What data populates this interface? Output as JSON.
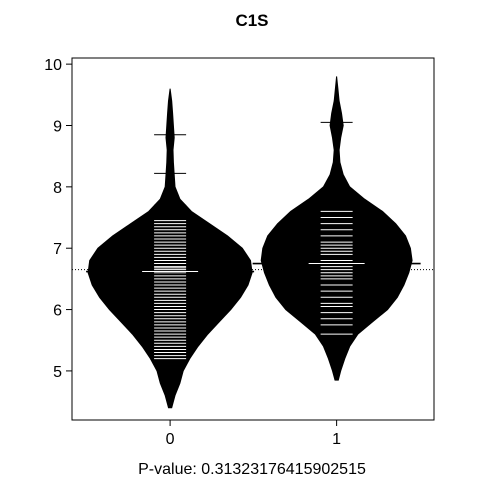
{
  "chart_data": {
    "type": "beanplot",
    "title": "C1S",
    "xlabel": "P-value: 0.31323176415902515",
    "ylabel": "",
    "ylim": [
      4.2,
      10.1
    ],
    "y_ticks": [
      5,
      6,
      7,
      8,
      9,
      10
    ],
    "categories": [
      "0",
      "1"
    ],
    "overall_mean": 6.65,
    "series": [
      {
        "category": "0",
        "mean": 6.62,
        "range": [
          4.4,
          9.6
        ],
        "density": [
          [
            4.4,
            0.02
          ],
          [
            4.6,
            0.06
          ],
          [
            4.8,
            0.12
          ],
          [
            5.0,
            0.16
          ],
          [
            5.2,
            0.24
          ],
          [
            5.4,
            0.34
          ],
          [
            5.6,
            0.46
          ],
          [
            5.8,
            0.6
          ],
          [
            6.0,
            0.74
          ],
          [
            6.2,
            0.86
          ],
          [
            6.4,
            0.95
          ],
          [
            6.6,
            1.0
          ],
          [
            6.8,
            0.98
          ],
          [
            7.0,
            0.88
          ],
          [
            7.2,
            0.7
          ],
          [
            7.4,
            0.48
          ],
          [
            7.6,
            0.26
          ],
          [
            7.8,
            0.12
          ],
          [
            8.0,
            0.06
          ],
          [
            8.2,
            0.05
          ],
          [
            8.4,
            0.04
          ],
          [
            8.6,
            0.035
          ],
          [
            8.8,
            0.05
          ],
          [
            9.0,
            0.04
          ],
          [
            9.2,
            0.03
          ],
          [
            9.4,
            0.02
          ],
          [
            9.6,
            0.0
          ]
        ],
        "observations": [
          5.2,
          5.25,
          5.3,
          5.35,
          5.4,
          5.45,
          5.5,
          5.55,
          5.6,
          5.65,
          5.7,
          5.75,
          5.8,
          5.85,
          5.9,
          5.95,
          6.0,
          6.05,
          6.1,
          6.15,
          6.2,
          6.25,
          6.3,
          6.35,
          6.4,
          6.45,
          6.5,
          6.55,
          6.6,
          6.65,
          6.68,
          6.7,
          6.75,
          6.8,
          6.85,
          6.9,
          6.95,
          7.0,
          7.05,
          7.1,
          7.15,
          7.2,
          7.25,
          7.3,
          7.35,
          7.4,
          7.45,
          7.7,
          8.22,
          8.85
        ]
      },
      {
        "category": "1",
        "mean": 6.75,
        "range": [
          4.85,
          9.8
        ],
        "density": [
          [
            4.85,
            0.02
          ],
          [
            5.0,
            0.05
          ],
          [
            5.2,
            0.1
          ],
          [
            5.4,
            0.16
          ],
          [
            5.6,
            0.26
          ],
          [
            5.8,
            0.44
          ],
          [
            6.0,
            0.62
          ],
          [
            6.2,
            0.74
          ],
          [
            6.4,
            0.82
          ],
          [
            6.6,
            0.88
          ],
          [
            6.8,
            0.92
          ],
          [
            7.0,
            0.9
          ],
          [
            7.2,
            0.84
          ],
          [
            7.4,
            0.72
          ],
          [
            7.6,
            0.56
          ],
          [
            7.8,
            0.34
          ],
          [
            8.0,
            0.16
          ],
          [
            8.2,
            0.08
          ],
          [
            8.4,
            0.04
          ],
          [
            8.6,
            0.03
          ],
          [
            8.8,
            0.05
          ],
          [
            9.0,
            0.08
          ],
          [
            9.2,
            0.06
          ],
          [
            9.4,
            0.03
          ],
          [
            9.6,
            0.015
          ],
          [
            9.8,
            0.0
          ]
        ],
        "observations": [
          5.6,
          5.75,
          5.85,
          5.95,
          6.05,
          6.1,
          6.2,
          6.3,
          6.4,
          6.5,
          6.55,
          6.6,
          6.65,
          6.7,
          6.8,
          6.9,
          6.95,
          7.0,
          7.05,
          7.1,
          7.2,
          7.3,
          7.4,
          7.5,
          7.6,
          9.05
        ]
      }
    ]
  }
}
